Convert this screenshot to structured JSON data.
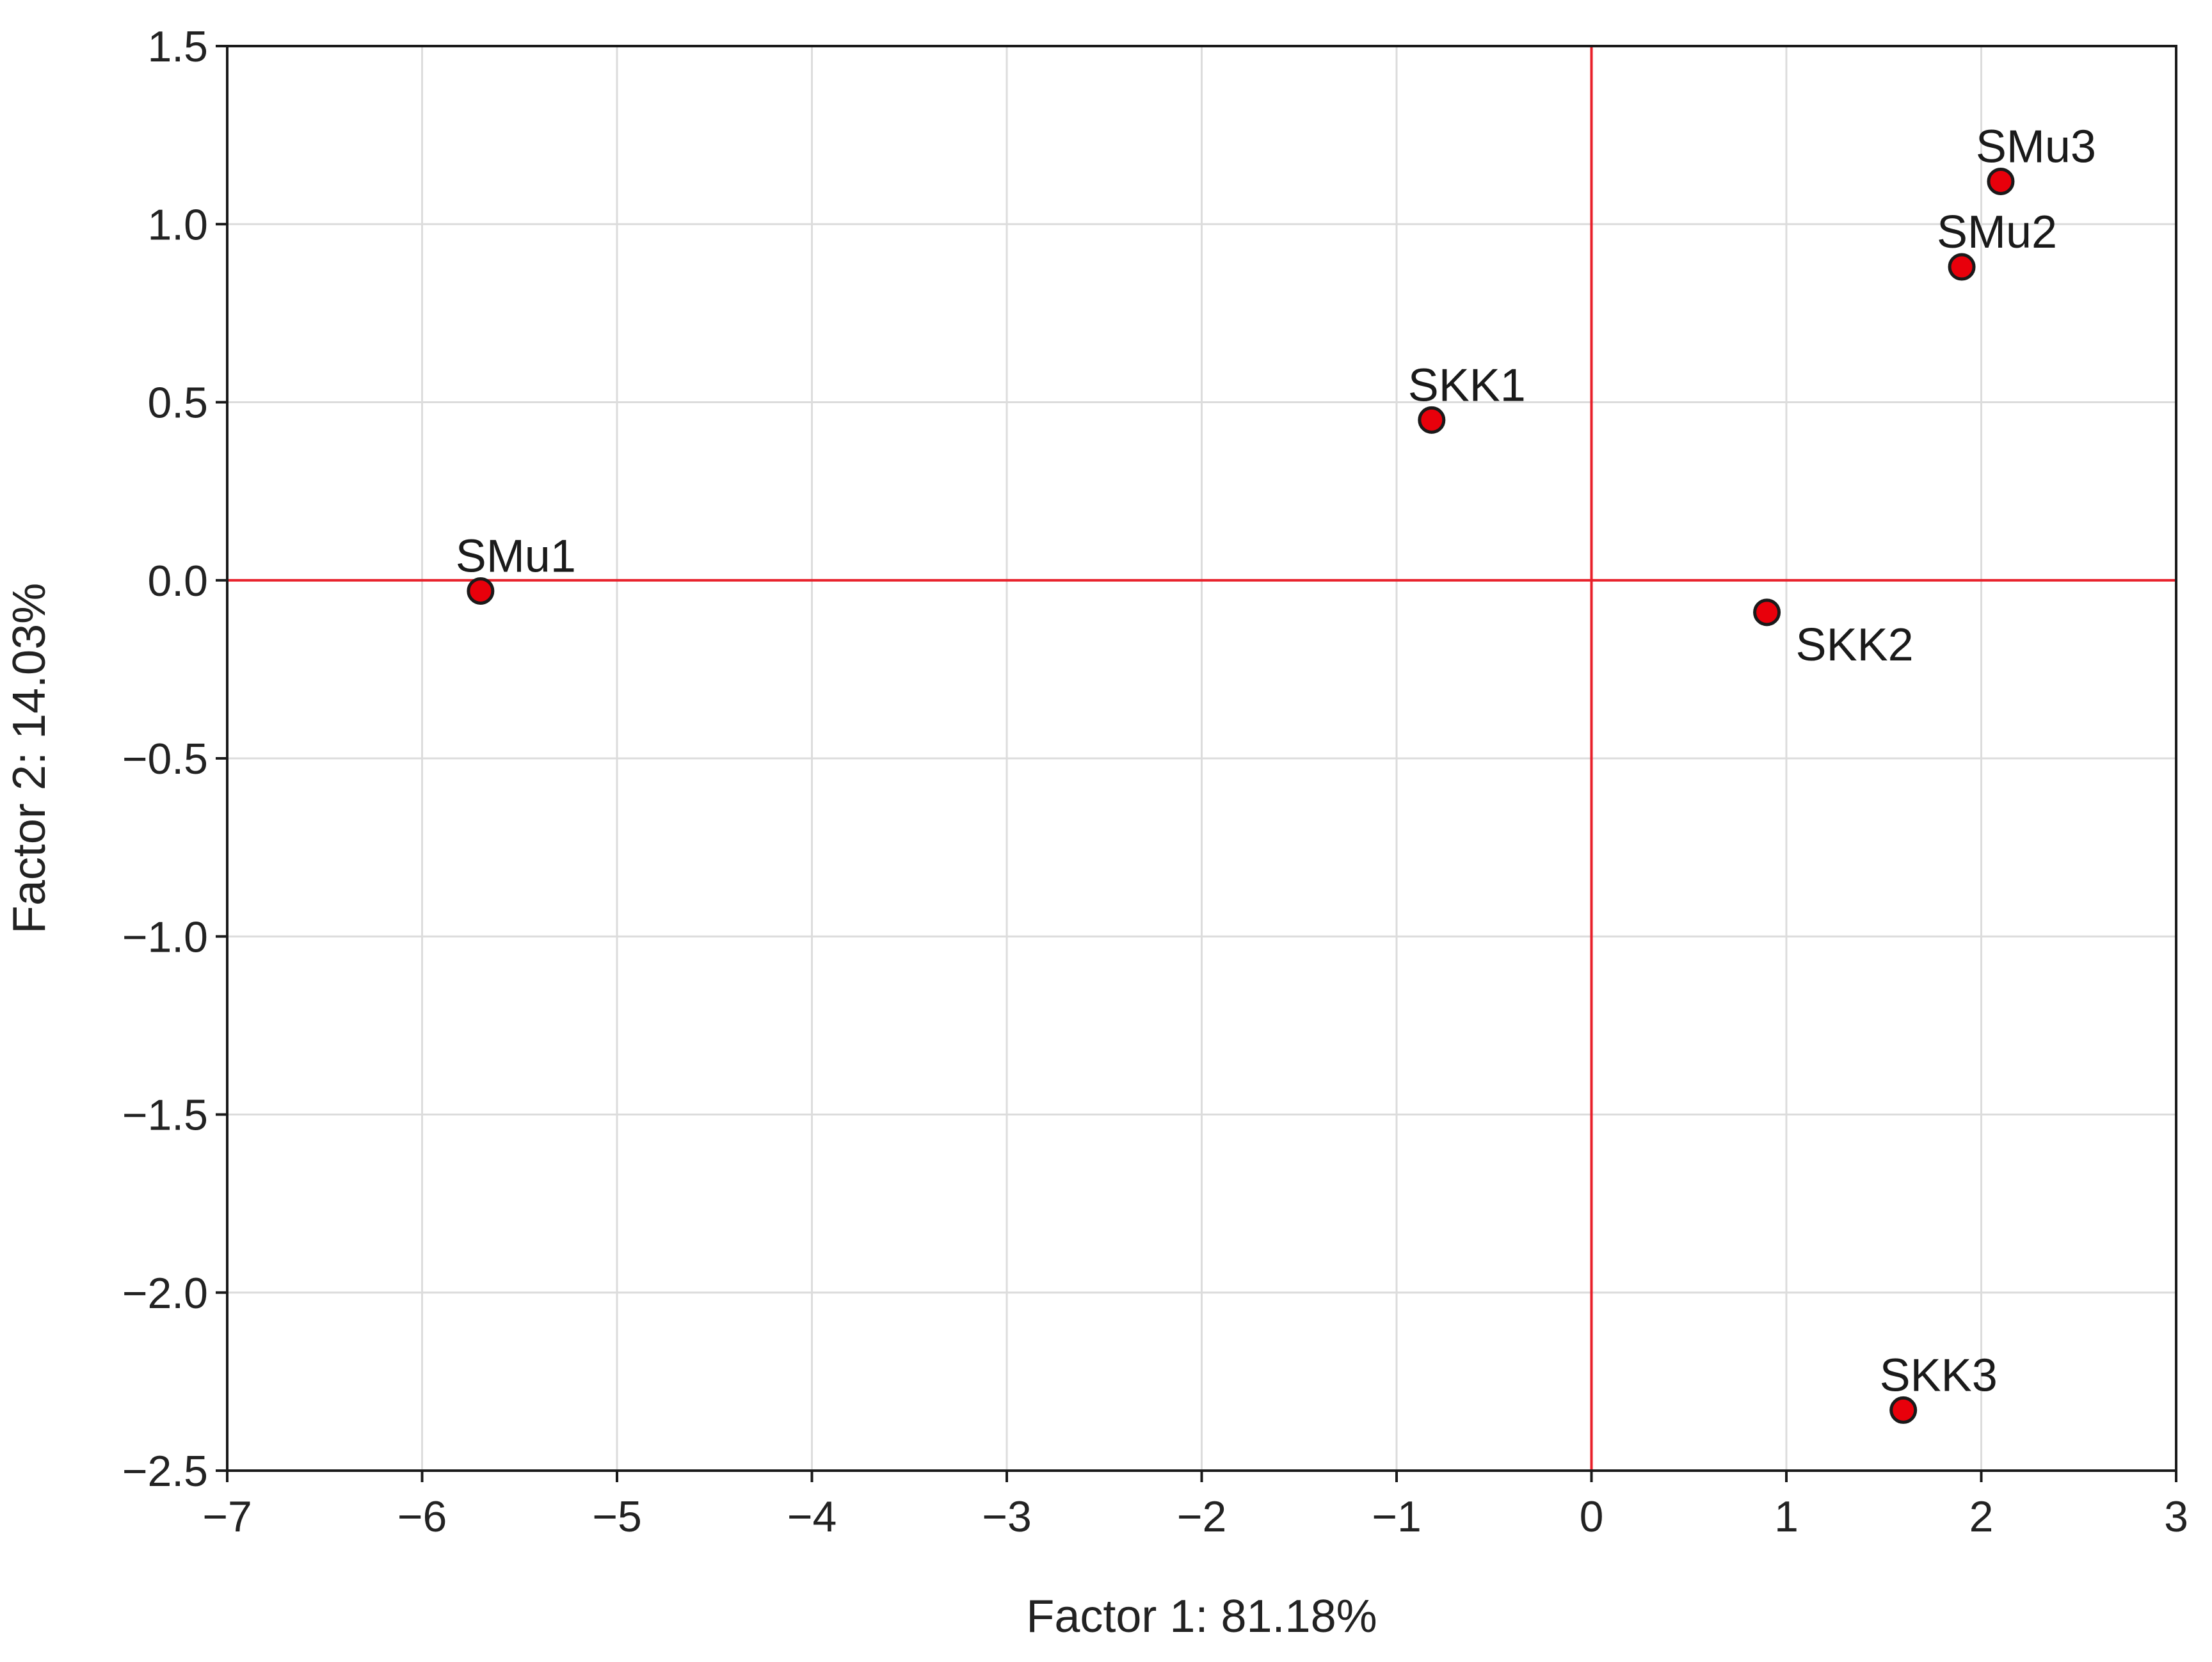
{
  "chart_data": {
    "type": "scatter",
    "title": "",
    "xlabel": "Factor 1: 81.18%",
    "ylabel": "Factor 2: 14.03%",
    "xlim": [
      -7,
      3
    ],
    "ylim": [
      -2.5,
      1.5
    ],
    "x_ticks": [
      {
        "value": -7,
        "label": "−7"
      },
      {
        "value": -6,
        "label": "−6"
      },
      {
        "value": -5,
        "label": "−5"
      },
      {
        "value": -4,
        "label": "−4"
      },
      {
        "value": -3,
        "label": "−3"
      },
      {
        "value": -2,
        "label": "−2"
      },
      {
        "value": -1,
        "label": "−1"
      },
      {
        "value": 0,
        "label": "0"
      },
      {
        "value": 1,
        "label": "1"
      },
      {
        "value": 2,
        "label": "2"
      },
      {
        "value": 3,
        "label": "3"
      }
    ],
    "y_ticks": [
      {
        "value": 1.5,
        "label": "1.5"
      },
      {
        "value": 1.0,
        "label": "1.0"
      },
      {
        "value": 0.5,
        "label": "0.5"
      },
      {
        "value": 0.0,
        "label": "0.0"
      },
      {
        "value": -0.5,
        "label": "−0.5"
      },
      {
        "value": -1.0,
        "label": "−1.0"
      },
      {
        "value": -1.5,
        "label": "−1.5"
      },
      {
        "value": -2.0,
        "label": "−2.0"
      },
      {
        "value": -2.5,
        "label": "−2.5"
      }
    ],
    "grid": true,
    "reference_lines": {
      "x": 0,
      "y": 0,
      "color": "#e8202a"
    },
    "points": [
      {
        "label": "SMu1",
        "x": -5.7,
        "y": -0.03,
        "label_position": "above"
      },
      {
        "label": "SKK1",
        "x": -0.82,
        "y": 0.45,
        "label_position": "above"
      },
      {
        "label": "SMu3",
        "x": 2.1,
        "y": 1.12,
        "label_position": "above"
      },
      {
        "label": "SMu2",
        "x": 1.9,
        "y": 0.88,
        "label_position": "above"
      },
      {
        "label": "SKK2",
        "x": 0.9,
        "y": -0.09,
        "label_position": "below-right"
      },
      {
        "label": "SKK3",
        "x": 1.6,
        "y": -2.33,
        "label_position": "above"
      }
    ],
    "marker_color": "#e8000b",
    "marker_edge_color": "#1a1a1a"
  }
}
